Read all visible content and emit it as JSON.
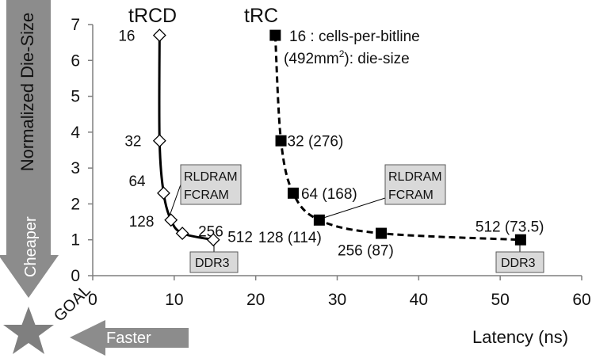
{
  "chart_data": {
    "type": "line",
    "xlabel": "Latency (ns)",
    "ylabel": "Normalized Die-Size",
    "xlim": [
      0,
      60
    ],
    "ylim": [
      0,
      7
    ],
    "x_ticks": [
      "0",
      "10",
      "20",
      "30",
      "40",
      "50",
      "60"
    ],
    "y_ticks": [
      "0",
      "1",
      "2",
      "3",
      "4",
      "5",
      "6",
      "7"
    ],
    "grid": false,
    "series": [
      {
        "name": "tRCD",
        "marker": "diamond-open",
        "line": "solid",
        "color": "#000000",
        "points": [
          {
            "x": 8.2,
            "y": 6.7,
            "label": "16"
          },
          {
            "x": 8.2,
            "y": 3.76,
            "label": "32"
          },
          {
            "x": 8.7,
            "y": 2.3,
            "label": "64"
          },
          {
            "x": 9.6,
            "y": 1.55,
            "label": "128"
          },
          {
            "x": 11.0,
            "y": 1.18,
            "label": "256"
          },
          {
            "x": 14.8,
            "y": 1.0,
            "label": "512"
          }
        ]
      },
      {
        "name": "tRC",
        "marker": "square-filled",
        "line": "dashed",
        "color": "#000000",
        "points": [
          {
            "x": 22.4,
            "y": 6.7,
            "label": ""
          },
          {
            "x": 23.1,
            "y": 3.76,
            "label": "32 (276)"
          },
          {
            "x": 24.6,
            "y": 2.3,
            "label": "64 (168)"
          },
          {
            "x": 27.8,
            "y": 1.55,
            "label": "128 (114)"
          },
          {
            "x": 35.4,
            "y": 1.18,
            "label": "256 (87)"
          },
          {
            "x": 52.5,
            "y": 1.0,
            "label": "512 (73.5)"
          }
        ]
      }
    ],
    "legend_note": {
      "line1": "16 : cells-per-bitline",
      "line2_pre": "(492mm",
      "line2_sup": "2",
      "line2_post": "): die-size"
    },
    "callouts": [
      {
        "lines": [
          "RLDRAM",
          "FCRAM"
        ]
      },
      {
        "lines": [
          "DDR3"
        ]
      },
      {
        "lines": [
          "RLDRAM",
          "FCRAM"
        ]
      },
      {
        "lines": [
          "DDR3"
        ]
      }
    ],
    "annotations": {
      "cheaper": "Cheaper",
      "faster": "Faster",
      "goal": "GOAL"
    },
    "colors": {
      "arrow": "#8c8c8c",
      "callout_fill": "#d9d9d9",
      "star": "#7f7f7f"
    }
  }
}
